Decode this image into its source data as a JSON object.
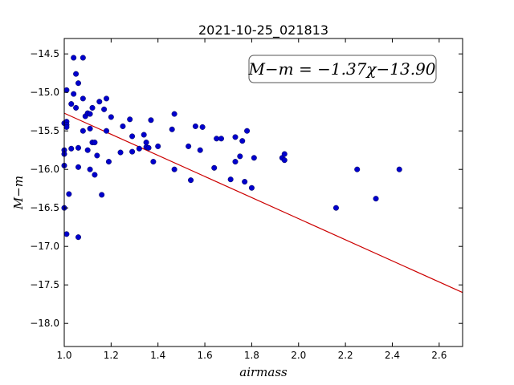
{
  "chart_data": {
    "type": "scatter",
    "title": "2021-10-25_021813",
    "xlabel": "airmass",
    "ylabel": "M−m",
    "xlim": [
      1.0,
      2.7
    ],
    "ylim": [
      -18.3,
      -14.3
    ],
    "y_inverted": true,
    "grid": false,
    "x_ticks": [
      1.0,
      1.2,
      1.4,
      1.6,
      1.8,
      2.0,
      2.2,
      2.4,
      2.6
    ],
    "x_tick_labels": [
      "1.0",
      "1.2",
      "1.4",
      "1.6",
      "1.8",
      "2.0",
      "2.2",
      "2.4",
      "2.6"
    ],
    "y_ticks": [
      -14.5,
      -15.0,
      -15.5,
      -16.0,
      -16.5,
      -17.0,
      -17.5,
      -18.0
    ],
    "y_tick_labels": [
      "−14.5",
      "−15.0",
      "−15.5",
      "−16.0",
      "−16.5",
      "−17.0",
      "−17.5",
      "−18.0"
    ],
    "annotation": "M−m = −1.37χ−13.90",
    "fit": {
      "slope": -1.37,
      "intercept": -13.9,
      "x_range": [
        1.0,
        2.7
      ],
      "color": "#cc0000"
    },
    "point_color": "#0000cc",
    "points": [
      [
        1.0,
        -15.4
      ],
      [
        1.0,
        -15.75
      ],
      [
        1.0,
        -15.8
      ],
      [
        1.0,
        -15.95
      ],
      [
        1.0,
        -16.5
      ],
      [
        1.01,
        -14.97
      ],
      [
        1.01,
        -15.38
      ],
      [
        1.01,
        -15.42
      ],
      [
        1.01,
        -15.45
      ],
      [
        1.01,
        -16.84
      ],
      [
        1.02,
        -16.32
      ],
      [
        1.03,
        -15.15
      ],
      [
        1.03,
        -15.73
      ],
      [
        1.04,
        -14.55
      ],
      [
        1.04,
        -15.02
      ],
      [
        1.05,
        -14.76
      ],
      [
        1.05,
        -15.2
      ],
      [
        1.06,
        -14.88
      ],
      [
        1.06,
        -15.72
      ],
      [
        1.06,
        -15.97
      ],
      [
        1.06,
        -16.88
      ],
      [
        1.08,
        -14.55
      ],
      [
        1.08,
        -15.08
      ],
      [
        1.08,
        -15.5
      ],
      [
        1.09,
        -15.31
      ],
      [
        1.1,
        -15.27
      ],
      [
        1.1,
        -15.75
      ],
      [
        1.11,
        -15.28
      ],
      [
        1.11,
        -15.47
      ],
      [
        1.11,
        -16.0
      ],
      [
        1.12,
        -15.2
      ],
      [
        1.12,
        -15.65
      ],
      [
        1.13,
        -15.65
      ],
      [
        1.13,
        -16.07
      ],
      [
        1.14,
        -15.82
      ],
      [
        1.15,
        -15.12
      ],
      [
        1.16,
        -16.33
      ],
      [
        1.17,
        -15.22
      ],
      [
        1.18,
        -15.08
      ],
      [
        1.18,
        -15.5
      ],
      [
        1.19,
        -15.9
      ],
      [
        1.2,
        -15.32
      ],
      [
        1.24,
        -15.78
      ],
      [
        1.25,
        -15.44
      ],
      [
        1.28,
        -15.35
      ],
      [
        1.29,
        -15.57
      ],
      [
        1.29,
        -15.77
      ],
      [
        1.32,
        -15.73
      ],
      [
        1.34,
        -15.55
      ],
      [
        1.35,
        -15.65
      ],
      [
        1.35,
        -15.71
      ],
      [
        1.36,
        -15.72
      ],
      [
        1.37,
        -15.36
      ],
      [
        1.38,
        -15.9
      ],
      [
        1.4,
        -15.7
      ],
      [
        1.46,
        -15.48
      ],
      [
        1.47,
        -15.28
      ],
      [
        1.47,
        -16.0
      ],
      [
        1.53,
        -15.7
      ],
      [
        1.54,
        -16.14
      ],
      [
        1.56,
        -15.44
      ],
      [
        1.58,
        -15.75
      ],
      [
        1.59,
        -15.45
      ],
      [
        1.64,
        -15.98
      ],
      [
        1.65,
        -15.6
      ],
      [
        1.67,
        -15.6
      ],
      [
        1.71,
        -16.13
      ],
      [
        1.73,
        -15.9
      ],
      [
        1.73,
        -15.58
      ],
      [
        1.75,
        -15.83
      ],
      [
        1.76,
        -15.63
      ],
      [
        1.77,
        -16.16
      ],
      [
        1.78,
        -15.5
      ],
      [
        1.8,
        -16.24
      ],
      [
        1.81,
        -15.85
      ],
      [
        1.93,
        -15.85
      ],
      [
        1.94,
        -15.88
      ],
      [
        1.94,
        -15.8
      ],
      [
        2.16,
        -16.5
      ],
      [
        2.25,
        -16.0
      ],
      [
        2.33,
        -16.38
      ],
      [
        2.43,
        -16.0
      ]
    ]
  }
}
